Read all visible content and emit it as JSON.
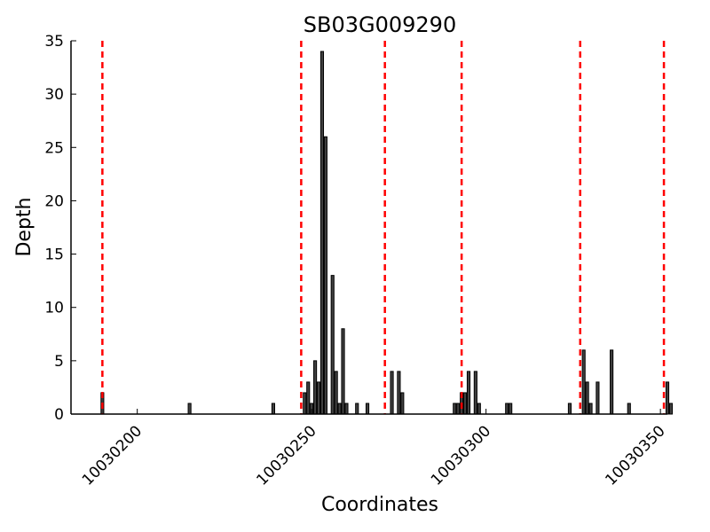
{
  "chart_data": {
    "type": "bar",
    "title": "SB03G009290",
    "xlabel": "Coordinates",
    "ylabel": "Depth",
    "xlim": [
      10030181,
      10030352
    ],
    "ylim": [
      0,
      35
    ],
    "x_ticks": [
      10030200,
      10030250,
      10030300,
      10030350
    ],
    "y_ticks": [
      0,
      5,
      10,
      15,
      20,
      25,
      30,
      35
    ],
    "grid": false,
    "bar_color": "#404040",
    "bar_edge_color": "#000000",
    "line_color": "#ff0000",
    "vertical_lines": [
      10030190,
      10030247,
      10030271,
      10030293,
      10030327,
      10030351
    ],
    "bars": [
      {
        "x": 10030190,
        "y": 2
      },
      {
        "x": 10030215,
        "y": 1
      },
      {
        "x": 10030239,
        "y": 1
      },
      {
        "x": 10030248,
        "y": 2
      },
      {
        "x": 10030249,
        "y": 3
      },
      {
        "x": 10030250,
        "y": 1
      },
      {
        "x": 10030251,
        "y": 5
      },
      {
        "x": 10030252,
        "y": 3
      },
      {
        "x": 10030253,
        "y": 34
      },
      {
        "x": 10030254,
        "y": 26
      },
      {
        "x": 10030256,
        "y": 13
      },
      {
        "x": 10030257,
        "y": 4
      },
      {
        "x": 10030258,
        "y": 1
      },
      {
        "x": 10030259,
        "y": 8
      },
      {
        "x": 10030260,
        "y": 1
      },
      {
        "x": 10030263,
        "y": 1
      },
      {
        "x": 10030266,
        "y": 1
      },
      {
        "x": 10030273,
        "y": 4
      },
      {
        "x": 10030275,
        "y": 4
      },
      {
        "x": 10030276,
        "y": 2
      },
      {
        "x": 10030291,
        "y": 1
      },
      {
        "x": 10030292,
        "y": 1
      },
      {
        "x": 10030293,
        "y": 2
      },
      {
        "x": 10030294,
        "y": 2
      },
      {
        "x": 10030295,
        "y": 4
      },
      {
        "x": 10030297,
        "y": 4
      },
      {
        "x": 10030298,
        "y": 1
      },
      {
        "x": 10030306,
        "y": 1
      },
      {
        "x": 10030307,
        "y": 1
      },
      {
        "x": 10030324,
        "y": 1
      },
      {
        "x": 10030328,
        "y": 6
      },
      {
        "x": 10030329,
        "y": 3
      },
      {
        "x": 10030330,
        "y": 1
      },
      {
        "x": 10030332,
        "y": 3
      },
      {
        "x": 10030336,
        "y": 6
      },
      {
        "x": 10030341,
        "y": 1
      },
      {
        "x": 10030352,
        "y": 3
      },
      {
        "x": 10030353,
        "y": 1
      }
    ]
  }
}
